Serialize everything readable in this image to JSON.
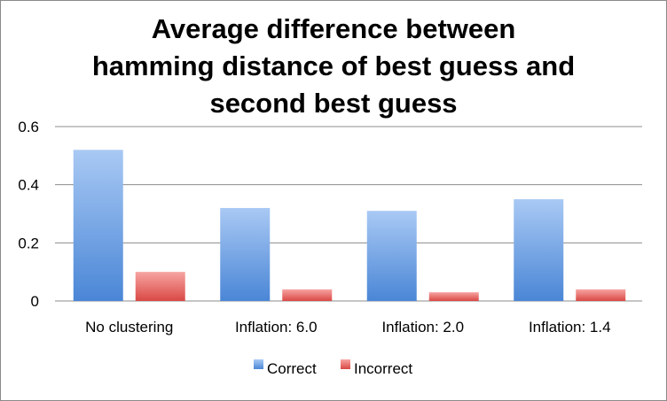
{
  "chart_data": {
    "type": "bar",
    "title_lines": [
      "Average difference between",
      "hamming distance of best guess and",
      "second best guess"
    ],
    "categories": [
      "No clustering",
      "Inflation: 6.0",
      "Inflation: 2.0",
      "Inflation: 1.4"
    ],
    "series": [
      {
        "name": "Correct",
        "values": [
          0.52,
          0.32,
          0.31,
          0.35
        ],
        "color_top": "#a9c9f4",
        "color_bottom": "#4a86d6"
      },
      {
        "name": "Incorrect",
        "values": [
          0.1,
          0.04,
          0.03,
          0.04
        ],
        "color_top": "#f7a5a3",
        "color_bottom": "#d94844"
      }
    ],
    "yticks": [
      "0",
      "0.2",
      "0.4",
      "0.6"
    ],
    "ylim": [
      0,
      0.6
    ],
    "grid": true,
    "legend_position": "bottom",
    "xlabel": "",
    "ylabel": ""
  }
}
